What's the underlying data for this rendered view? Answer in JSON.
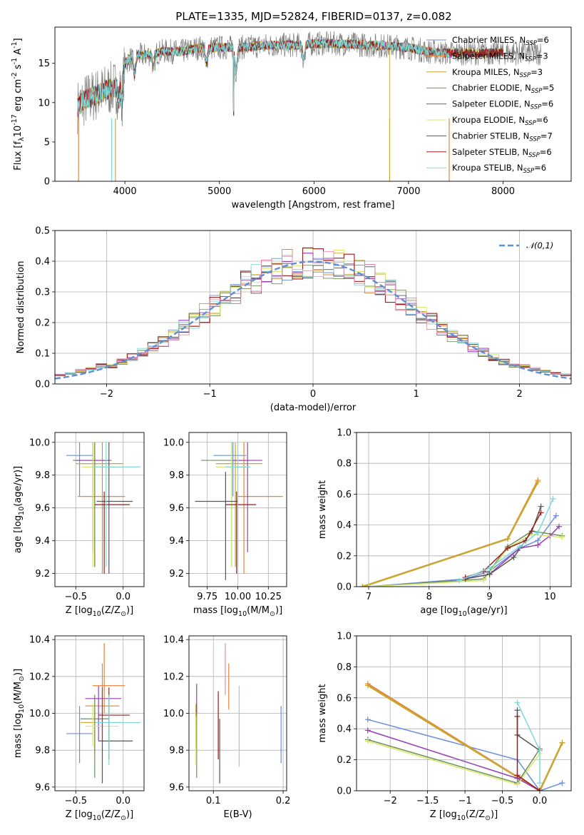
{
  "figure_title": "PLATE=1335, MJD=52824, FIBERID=0137, z=0.082",
  "colors": {
    "Chabrier MILES": "#6a8fdc",
    "Salpeter MILES": "#e8833a",
    "Kroupa MILES": "#c8a630",
    "Chabrier ELODIE": "#6e8f5a",
    "Salpeter ELODIE": "#9a3cb8",
    "Kroupa ELODIE": "#d8e86a",
    "Chabrier STELIB": "#555555",
    "Salpeter STELIB": "#9e1b1b",
    "Kroupa STELIB": "#7fd8d8",
    "data": "#7f7f7f",
    "gaussian": "#5f8fd6",
    "pinkish": "#e88ab0"
  },
  "chart_data": [
    {
      "id": "spectrum",
      "type": "line",
      "xlabel": "wavelength [Angstrom, rest frame]",
      "ylabel": "Flux [f$_\\lambda$10$^{-17}$ erg cm$^{-2}$ s$^{-1}$ A$^{-1}$]",
      "xlim": [
        3260,
        8720
      ],
      "ylim": [
        0,
        19.6
      ],
      "xticks": [
        4000,
        5000,
        6000,
        7000,
        8000
      ],
      "yticks": [
        0,
        5,
        10,
        15
      ],
      "grid": false,
      "legend_position": "right",
      "legend": [
        {
          "label": "Chabrier MILES, N",
          "sub": "SSP",
          "val": "=6"
        },
        {
          "label": "Salpeter MILES, N",
          "sub": "SSP",
          "val": "=3"
        },
        {
          "label": "Kroupa MILES, N",
          "sub": "SSP",
          "val": "=3"
        },
        {
          "label": "Chabrier ELODIE, N",
          "sub": "SSP",
          "val": "=5"
        },
        {
          "label": "Salpeter ELODIE, N",
          "sub": "SSP",
          "val": "=6"
        },
        {
          "label": "Kroupa ELODIE, N",
          "sub": "SSP",
          "val": "=6"
        },
        {
          "label": "Chabrier STELIB, N",
          "sub": "SSP",
          "val": "=7"
        },
        {
          "label": "Salpeter STELIB, N",
          "sub": "SSP",
          "val": "=6"
        },
        {
          "label": "Kroupa STELIB, N",
          "sub": "SSP",
          "val": "=6"
        }
      ],
      "continuum_points": [
        [
          3500,
          9.5
        ],
        [
          3600,
          10.5
        ],
        [
          3700,
          11
        ],
        [
          3800,
          11.5
        ],
        [
          3900,
          12
        ],
        [
          4000,
          15
        ],
        [
          4100,
          16
        ],
        [
          4200,
          16
        ],
        [
          4400,
          16.5
        ],
        [
          4600,
          16.5
        ],
        [
          4800,
          17
        ],
        [
          5000,
          17
        ],
        [
          5200,
          17
        ],
        [
          5500,
          17.3
        ],
        [
          5800,
          17.3
        ],
        [
          6000,
          17.5
        ],
        [
          6300,
          17.5
        ],
        [
          6600,
          17.3
        ],
        [
          6800,
          17.2
        ],
        [
          7000,
          17
        ],
        [
          7200,
          16.5
        ],
        [
          7400,
          16.3
        ]
      ],
      "features": [
        [
          3934,
          10.5
        ],
        [
          3969,
          10.3
        ],
        [
          4102,
          13.5
        ],
        [
          4304,
          14.5
        ],
        [
          4861,
          15
        ],
        [
          5175,
          14
        ],
        [
          5890,
          15.5
        ],
        [
          6563,
          17.2
        ],
        [
          5150,
          4
        ]
      ]
    },
    {
      "id": "residuals",
      "type": "histogram",
      "xlabel": "(data-model)/error",
      "ylabel": "Normed distribution",
      "xlim": [
        -2.5,
        2.5
      ],
      "ylim": [
        0,
        0.5
      ],
      "xticks": [
        -2,
        -1,
        0,
        1,
        2
      ],
      "yticks": [
        0.0,
        0.1,
        0.2,
        0.3,
        0.4,
        0.5
      ],
      "grid": true,
      "legend_label": "$\\mathcal{N}(0,1)$",
      "legend_position": "top-right",
      "bin_width": 0.1,
      "bins_start": -2.5,
      "gaussian": {
        "mean": 0,
        "sigma": 1
      }
    },
    {
      "id": "age_Z",
      "type": "errorbar",
      "xlabel": "Z [log$_{10}$(Z/Z$_\\odot$)]",
      "ylabel": "age  [log$_{10}$(age/yr)]",
      "xlim": [
        -0.72,
        0.22
      ],
      "ylim": [
        9.12,
        10.06
      ],
      "xticks": [
        -0.5,
        0.0
      ],
      "yticks": [
        9.2,
        9.4,
        9.6,
        9.8,
        10.0
      ],
      "grid": true,
      "points": [
        {
          "model": "Chabrier MILES",
          "x": -0.46,
          "xlo": -0.6,
          "xhi": -0.32,
          "y": 9.92,
          "ylo": 9.67,
          "yhi": 10.0
        },
        {
          "model": "Salpeter MILES",
          "x": -0.22,
          "xlo": -0.48,
          "xhi": 0.02,
          "y": 9.67,
          "ylo": 9.2,
          "yhi": 10.0
        },
        {
          "model": "Kroupa MILES",
          "x": -0.3,
          "xlo": -0.5,
          "xhi": 0.0,
          "y": 9.87,
          "ylo": 9.24,
          "yhi": 10.0
        },
        {
          "model": "Chabrier ELODIE",
          "x": -0.3,
          "xlo": -0.53,
          "xhi": -0.12,
          "y": 9.89,
          "ylo": 9.24,
          "yhi": 10.0
        },
        {
          "model": "Salpeter ELODIE",
          "x": -0.32,
          "xlo": -0.5,
          "xhi": -0.14,
          "y": 9.89,
          "ylo": 9.33,
          "yhi": 10.0
        },
        {
          "model": "Kroupa ELODIE",
          "x": -0.32,
          "xlo": -0.44,
          "xhi": -0.1,
          "y": 9.85,
          "ylo": 9.24,
          "yhi": 10.0
        },
        {
          "model": "Chabrier STELIB",
          "x": -0.15,
          "xlo": -0.28,
          "xhi": 0.1,
          "y": 9.64,
          "ylo": 9.2,
          "yhi": 10.0
        },
        {
          "model": "Salpeter STELIB",
          "x": -0.2,
          "xlo": -0.3,
          "xhi": 0.07,
          "y": 9.62,
          "ylo": 9.2,
          "yhi": 9.7
        },
        {
          "model": "Kroupa STELIB",
          "x": -0.18,
          "xlo": -0.32,
          "xhi": 0.18,
          "y": 9.85,
          "ylo": 9.24,
          "yhi": 10.0
        }
      ]
    },
    {
      "id": "age_mass",
      "type": "errorbar",
      "xlabel": "mass [log$_{10}$(M/M$_\\odot$)]",
      "ylabel": "",
      "xlim": [
        9.6,
        10.4
      ],
      "ylim": [
        9.12,
        10.06
      ],
      "xticks": [
        9.75,
        10.0,
        10.25
      ],
      "xticklabels": [
        "9.75",
        "10.00",
        "10.25"
      ],
      "yticks": [
        9.2,
        9.4,
        9.6,
        9.8,
        10.0
      ],
      "grid": true,
      "points": [
        {
          "model": "Chabrier MILES",
          "x": 9.96,
          "xlo": 9.8,
          "xhi": 10.07,
          "y": 9.92,
          "ylo": 9.67,
          "yhi": 10.0
        },
        {
          "model": "Salpeter MILES",
          "x": 10.05,
          "xlo": 10.0,
          "xhi": 10.37,
          "y": 9.67,
          "ylo": 9.2,
          "yhi": 10.0
        },
        {
          "model": "Kroupa MILES",
          "x": 9.98,
          "xlo": 9.82,
          "xhi": 10.2,
          "y": 9.87,
          "ylo": 9.24,
          "yhi": 10.0
        },
        {
          "model": "Chabrier ELODIE",
          "x": 9.95,
          "xlo": 9.7,
          "xhi": 10.1,
          "y": 9.89,
          "ylo": 9.24,
          "yhi": 10.0
        },
        {
          "model": "Salpeter ELODIE",
          "x": 10.08,
          "xlo": 9.96,
          "xhi": 10.2,
          "y": 9.89,
          "ylo": 9.33,
          "yhi": 10.0
        },
        {
          "model": "Kroupa ELODIE",
          "x": 9.95,
          "xlo": 9.82,
          "xhi": 10.1,
          "y": 9.85,
          "ylo": 9.24,
          "yhi": 10.0
        },
        {
          "model": "Chabrier STELIB",
          "x": 9.9,
          "xlo": 9.65,
          "xhi": 10.0,
          "y": 9.64,
          "ylo": 9.16,
          "yhi": 9.82
        },
        {
          "model": "Salpeter STELIB",
          "x": 9.99,
          "xlo": 9.9,
          "xhi": 10.15,
          "y": 9.62,
          "ylo": 9.2,
          "yhi": 9.7
        },
        {
          "model": "Kroupa STELIB",
          "x": 10.0,
          "xlo": 9.9,
          "xhi": 10.1,
          "y": 9.85,
          "ylo": 9.24,
          "yhi": 10.0
        }
      ]
    },
    {
      "id": "weight_age",
      "type": "line",
      "xlabel": "age  [log$_{10}$(age/yr)]",
      "ylabel": "mass weight",
      "xlim": [
        6.8,
        10.35
      ],
      "ylim": [
        0,
        1.0
      ],
      "xticks": [
        7,
        8,
        9,
        10
      ],
      "yticks": [
        0.0,
        0.2,
        0.4,
        0.6,
        0.8,
        1.0
      ],
      "grid": true,
      "series": [
        {
          "model": "Chabrier MILES",
          "x": [
            7.0,
            8.6,
            9.0,
            9.5,
            9.8,
            10.1
          ],
          "y": [
            0.0,
            0.05,
            0.1,
            0.25,
            0.3,
            0.46
          ]
        },
        {
          "model": "Salpeter MILES",
          "x": [
            6.9,
            9.3,
            9.8
          ],
          "y": [
            0.0,
            0.31,
            0.69
          ]
        },
        {
          "model": "Kroupa MILES",
          "x": [
            6.9,
            9.3,
            9.8
          ],
          "y": [
            0.0,
            0.31,
            0.68
          ]
        },
        {
          "model": "Chabrier ELODIE",
          "x": [
            7.0,
            8.9,
            9.3,
            9.7,
            10.2
          ],
          "y": [
            0.0,
            0.05,
            0.26,
            0.36,
            0.33
          ]
        },
        {
          "model": "Salpeter ELODIE",
          "x": [
            8.6,
            9.0,
            9.5,
            9.8,
            10.0,
            10.15
          ],
          "y": [
            0.05,
            0.08,
            0.25,
            0.27,
            0.33,
            0.39
          ]
        },
        {
          "model": "Kroupa ELODIE",
          "x": [
            7.0,
            8.9,
            9.3,
            9.7,
            10.2
          ],
          "y": [
            0.0,
            0.04,
            0.25,
            0.34,
            0.32
          ]
        },
        {
          "model": "Chabrier STELIB",
          "x": [
            8.6,
            9.0,
            9.4,
            9.7,
            9.85
          ],
          "y": [
            0.05,
            0.08,
            0.19,
            0.36,
            0.52
          ]
        },
        {
          "model": "Salpeter STELIB",
          "x": [
            8.6,
            8.9,
            9.3,
            9.6,
            9.85
          ],
          "y": [
            0.06,
            0.1,
            0.25,
            0.3,
            0.48
          ]
        },
        {
          "model": "Kroupa STELIB",
          "x": [
            8.5,
            9.0,
            9.5,
            9.8,
            10.05
          ],
          "y": [
            0.04,
            0.12,
            0.26,
            0.35,
            0.57
          ]
        }
      ]
    },
    {
      "id": "mass_Z",
      "type": "errorbar",
      "xlabel": "Z [log$_{10}$(Z/Z$_\\odot$)]",
      "ylabel": "mass [log$_{10}$(M/M$_\\odot$)]",
      "xlim": [
        -0.72,
        0.22
      ],
      "ylim": [
        9.58,
        10.42
      ],
      "xticks": [
        -0.5,
        0.0
      ],
      "yticks": [
        9.6,
        9.8,
        10.0,
        10.2,
        10.4
      ],
      "grid": true,
      "points": [
        {
          "model": "Chabrier MILES",
          "x": -0.46,
          "xlo": -0.6,
          "xhi": -0.32,
          "y": 9.89,
          "ylo": 9.73,
          "yhi": 10.04
        },
        {
          "model": "Salpeter MILES",
          "x": -0.22,
          "xlo": -0.4,
          "xhi": -0.04,
          "y": 10.04,
          "ylo": 9.85,
          "yhi": 10.27
        },
        {
          "model": "Kroupa MILES",
          "x": -0.3,
          "xlo": -0.45,
          "xhi": 0.0,
          "y": 9.95,
          "ylo": 9.78,
          "yhi": 10.1
        },
        {
          "model": "Chabrier ELODIE",
          "x": -0.3,
          "xlo": -0.45,
          "xhi": -0.15,
          "y": 9.97,
          "ylo": 9.65,
          "yhi": 10.1
        },
        {
          "model": "Salpeter ELODIE",
          "x": -0.26,
          "xlo": -0.4,
          "xhi": -0.02,
          "y": 10.08,
          "ylo": 9.85,
          "yhi": 10.15
        },
        {
          "model": "Kroupa ELODIE",
          "x": -0.32,
          "xlo": -0.4,
          "xhi": -0.05,
          "y": 9.93,
          "ylo": 9.82,
          "yhi": 10.05
        },
        {
          "model": "Chabrier STELIB",
          "x": -0.22,
          "xlo": -0.26,
          "xhi": 0.1,
          "y": 9.85,
          "ylo": 9.62,
          "yhi": 10.14
        },
        {
          "model": "Salpeter STELIB",
          "x": -0.15,
          "xlo": -0.26,
          "xhi": 0.07,
          "y": 9.99,
          "ylo": 9.75,
          "yhi": 10.14
        },
        {
          "model": "Kroupa STELIB",
          "x": -0.15,
          "xlo": -0.3,
          "xhi": 0.18,
          "y": 9.95,
          "ylo": 9.72,
          "yhi": 10.1
        },
        {
          "model": "Salpeter MILES",
          "x": -0.2,
          "xlo": -0.32,
          "xhi": 0.02,
          "y": 10.15,
          "ylo": 10.0,
          "yhi": 10.38
        }
      ]
    },
    {
      "id": "mass_ebv",
      "type": "errorbar",
      "xlabel": "E(B-V)",
      "ylabel": "",
      "xlim": [
        0.065,
        0.205
      ],
      "ylim": [
        9.58,
        10.42
      ],
      "xticks": [
        0.1,
        0.2
      ],
      "yticks": [
        9.6,
        9.8,
        10.0,
        10.2,
        10.4
      ],
      "grid": true,
      "points": [
        {
          "model": "Chabrier MILES",
          "x": 0.197,
          "ylo": 9.73,
          "yhi": 10.04
        },
        {
          "model": "Salpeter MILES",
          "x": 0.122,
          "ylo": 10.02,
          "yhi": 10.27
        },
        {
          "model": "Kroupa MILES",
          "x": 0.075,
          "ylo": 9.82,
          "yhi": 10.05
        },
        {
          "model": "Chabrier ELODIE",
          "x": 0.076,
          "ylo": 9.65,
          "yhi": 10.05
        },
        {
          "model": "Salpeter ELODIE",
          "x": 0.076,
          "ylo": 10.0,
          "yhi": 10.16
        },
        {
          "model": "Kroupa ELODIE",
          "x": 0.075,
          "ylo": 9.72,
          "yhi": 9.98
        },
        {
          "model": "Chabrier STELIB",
          "x": 0.109,
          "ylo": 9.62,
          "yhi": 9.97
        },
        {
          "model": "Salpeter STELIB",
          "x": 0.107,
          "ylo": 9.75,
          "yhi": 10.12
        },
        {
          "model": "Kroupa STELIB",
          "x": 0.137,
          "ylo": 9.71,
          "yhi": 10.15
        },
        {
          "model": "pink",
          "x": 0.117,
          "ylo": 10.1,
          "yhi": 10.38
        }
      ]
    },
    {
      "id": "weight_Z",
      "type": "line",
      "xlabel": "Z [log$_{10}$(Z/Z$_\\odot$)]",
      "ylabel": "mass weight",
      "xlim": [
        -2.45,
        0.42
      ],
      "ylim": [
        0,
        1.0
      ],
      "xticks": [
        -2.0,
        -1.5,
        -1.0,
        -0.5,
        0.0
      ],
      "yticks": [
        0.0,
        0.2,
        0.4,
        0.6,
        0.8,
        1.0
      ],
      "grid": true,
      "series": [
        {
          "model": "Chabrier MILES",
          "x": [
            -2.3,
            -0.3,
            0.0,
            0.3
          ],
          "y": [
            0.46,
            0.2,
            0.0,
            0.05
          ]
        },
        {
          "model": "Salpeter MILES",
          "x": [
            -2.3,
            0.0,
            0.3
          ],
          "y": [
            0.69,
            0.0,
            0.31
          ]
        },
        {
          "model": "Kroupa MILES",
          "x": [
            -2.3,
            0.0,
            0.3
          ],
          "y": [
            0.68,
            0.0,
            0.31
          ]
        },
        {
          "model": "Chabrier ELODIE",
          "x": [
            -2.3,
            -0.3,
            0.0
          ],
          "y": [
            0.33,
            0.05,
            0.27
          ]
        },
        {
          "model": "Salpeter ELODIE",
          "x": [
            -2.3,
            -0.3,
            0.0
          ],
          "y": [
            0.39,
            0.08,
            0.0
          ]
        },
        {
          "model": "Kroupa ELODIE",
          "x": [
            -2.3,
            -0.3,
            0.0
          ],
          "y": [
            0.32,
            0.04,
            0.24
          ]
        },
        {
          "model": "Chabrier STELIB",
          "x": [
            -0.3,
            -0.3,
            0.0
          ],
          "y": [
            0.52,
            0.36,
            0.26
          ]
        },
        {
          "model": "Salpeter STELIB",
          "x": [
            -0.3,
            -0.3,
            0.0
          ],
          "y": [
            0.48,
            0.1,
            0.0
          ]
        },
        {
          "model": "Kroupa STELIB",
          "x": [
            -0.3,
            0.0,
            0.0
          ],
          "y": [
            0.57,
            0.26,
            0.05
          ]
        }
      ]
    }
  ]
}
